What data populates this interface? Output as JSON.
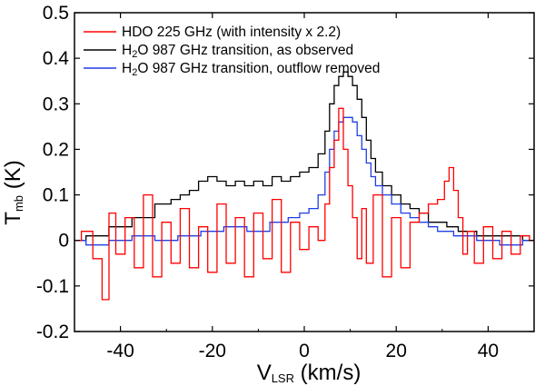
{
  "chart_data": {
    "type": "line",
    "title": "",
    "xlabel_main": "V",
    "xlabel_sub": "LSR",
    "xlabel_unit": " (km/s)",
    "ylabel_main": "T",
    "ylabel_sub": "mb",
    "ylabel_unit": " (K)",
    "xlim": [
      -50,
      50
    ],
    "ylim": [
      -0.2,
      0.5
    ],
    "x_ticks": [
      -40,
      -20,
      0,
      20,
      40
    ],
    "x_tick_labels": [
      "-40",
      "-20",
      "0",
      "20",
      "40"
    ],
    "y_ticks": [
      -0.2,
      -0.1,
      0,
      0.1,
      0.2,
      0.3,
      0.4,
      0.5
    ],
    "y_tick_labels": [
      "-0.2",
      "-0.1",
      "0",
      "0.1",
      "0.2",
      "0.3",
      "0.4",
      "0.5"
    ],
    "grid": false,
    "legend_position": "top-left",
    "series": [
      {
        "name": "HDO 225 GHz (with intensity x 2.2)",
        "legend_parts": [
          "HDO 225 GHz (with intensity x 2.2)"
        ],
        "color": "#ff0000",
        "x": [
          -50,
          -47,
          -45,
          -43,
          -42,
          -40,
          -38,
          -36,
          -34,
          -32,
          -30,
          -28,
          -26,
          -24,
          -22,
          -20,
          -18,
          -16,
          -14,
          -12,
          -10,
          -8,
          -6,
          -4,
          -2,
          0,
          2,
          4,
          5,
          6,
          7,
          8,
          9,
          10,
          11,
          12,
          13,
          14,
          16,
          18,
          20,
          22,
          24,
          26,
          28,
          30,
          31,
          32,
          33,
          34,
          35,
          36,
          38,
          40,
          42,
          44,
          46,
          48,
          50
        ],
        "y": [
          0.0,
          0.02,
          -0.04,
          -0.13,
          0.06,
          -0.03,
          0.05,
          -0.06,
          0.1,
          -0.08,
          0.04,
          -0.05,
          0.07,
          -0.06,
          0.03,
          -0.07,
          0.08,
          -0.05,
          0.05,
          -0.08,
          0.06,
          -0.04,
          0.09,
          -0.07,
          0.04,
          -0.02,
          0.03,
          0.0,
          0.08,
          0.16,
          0.22,
          0.29,
          0.2,
          0.12,
          0.05,
          -0.04,
          0.07,
          -0.05,
          0.1,
          -0.08,
          0.05,
          -0.06,
          0.04,
          0.06,
          0.08,
          0.09,
          0.13,
          0.16,
          0.11,
          0.05,
          -0.03,
          0.02,
          -0.05,
          0.03,
          -0.04,
          0.02,
          -0.03,
          0.01,
          0.0
        ]
      },
      {
        "name": "H2O 987 GHz transition, as observed",
        "legend_parts": [
          "H",
          "2",
          "O  987 GHz transition, as observed"
        ],
        "color": "#000000",
        "x": [
          -50,
          -45,
          -40,
          -35,
          -30,
          -28,
          -26,
          -24,
          -22,
          -20,
          -18,
          -16,
          -14,
          -12,
          -10,
          -8,
          -6,
          -4,
          -2,
          0,
          2,
          4,
          5,
          6,
          7,
          8,
          9,
          10,
          11,
          12,
          13,
          14,
          15,
          16,
          18,
          20,
          22,
          24,
          26,
          28,
          30,
          32,
          35,
          40,
          45,
          50
        ],
        "y": [
          0.0,
          0.01,
          0.03,
          0.05,
          0.08,
          0.09,
          0.1,
          0.11,
          0.13,
          0.14,
          0.13,
          0.12,
          0.13,
          0.12,
          0.13,
          0.12,
          0.14,
          0.13,
          0.14,
          0.15,
          0.16,
          0.19,
          0.24,
          0.3,
          0.34,
          0.36,
          0.37,
          0.36,
          0.34,
          0.31,
          0.27,
          0.22,
          0.18,
          0.15,
          0.12,
          0.1,
          0.08,
          0.07,
          0.06,
          0.04,
          0.04,
          0.03,
          0.02,
          0.01,
          0.01,
          0.0
        ]
      },
      {
        "name": "H2O 987 GHz transition, outflow removed",
        "legend_parts": [
          "H",
          "2",
          "O  987 GHz transition, outflow removed"
        ],
        "color": "#1f3fe6",
        "x": [
          -50,
          -45,
          -40,
          -35,
          -30,
          -25,
          -20,
          -15,
          -10,
          -5,
          -2,
          0,
          2,
          4,
          5,
          6,
          7,
          8,
          9,
          10,
          11,
          12,
          13,
          14,
          15,
          16,
          18,
          20,
          22,
          24,
          26,
          28,
          30,
          35,
          40,
          45,
          50
        ],
        "y": [
          0.0,
          -0.01,
          0.0,
          0.01,
          0.0,
          0.01,
          0.02,
          0.03,
          0.02,
          0.04,
          0.05,
          0.06,
          0.07,
          0.1,
          0.15,
          0.2,
          0.24,
          0.26,
          0.27,
          0.27,
          0.26,
          0.23,
          0.2,
          0.17,
          0.14,
          0.12,
          0.1,
          0.08,
          0.06,
          0.05,
          0.04,
          0.03,
          0.02,
          0.01,
          0.0,
          -0.01,
          0.0
        ]
      }
    ]
  }
}
